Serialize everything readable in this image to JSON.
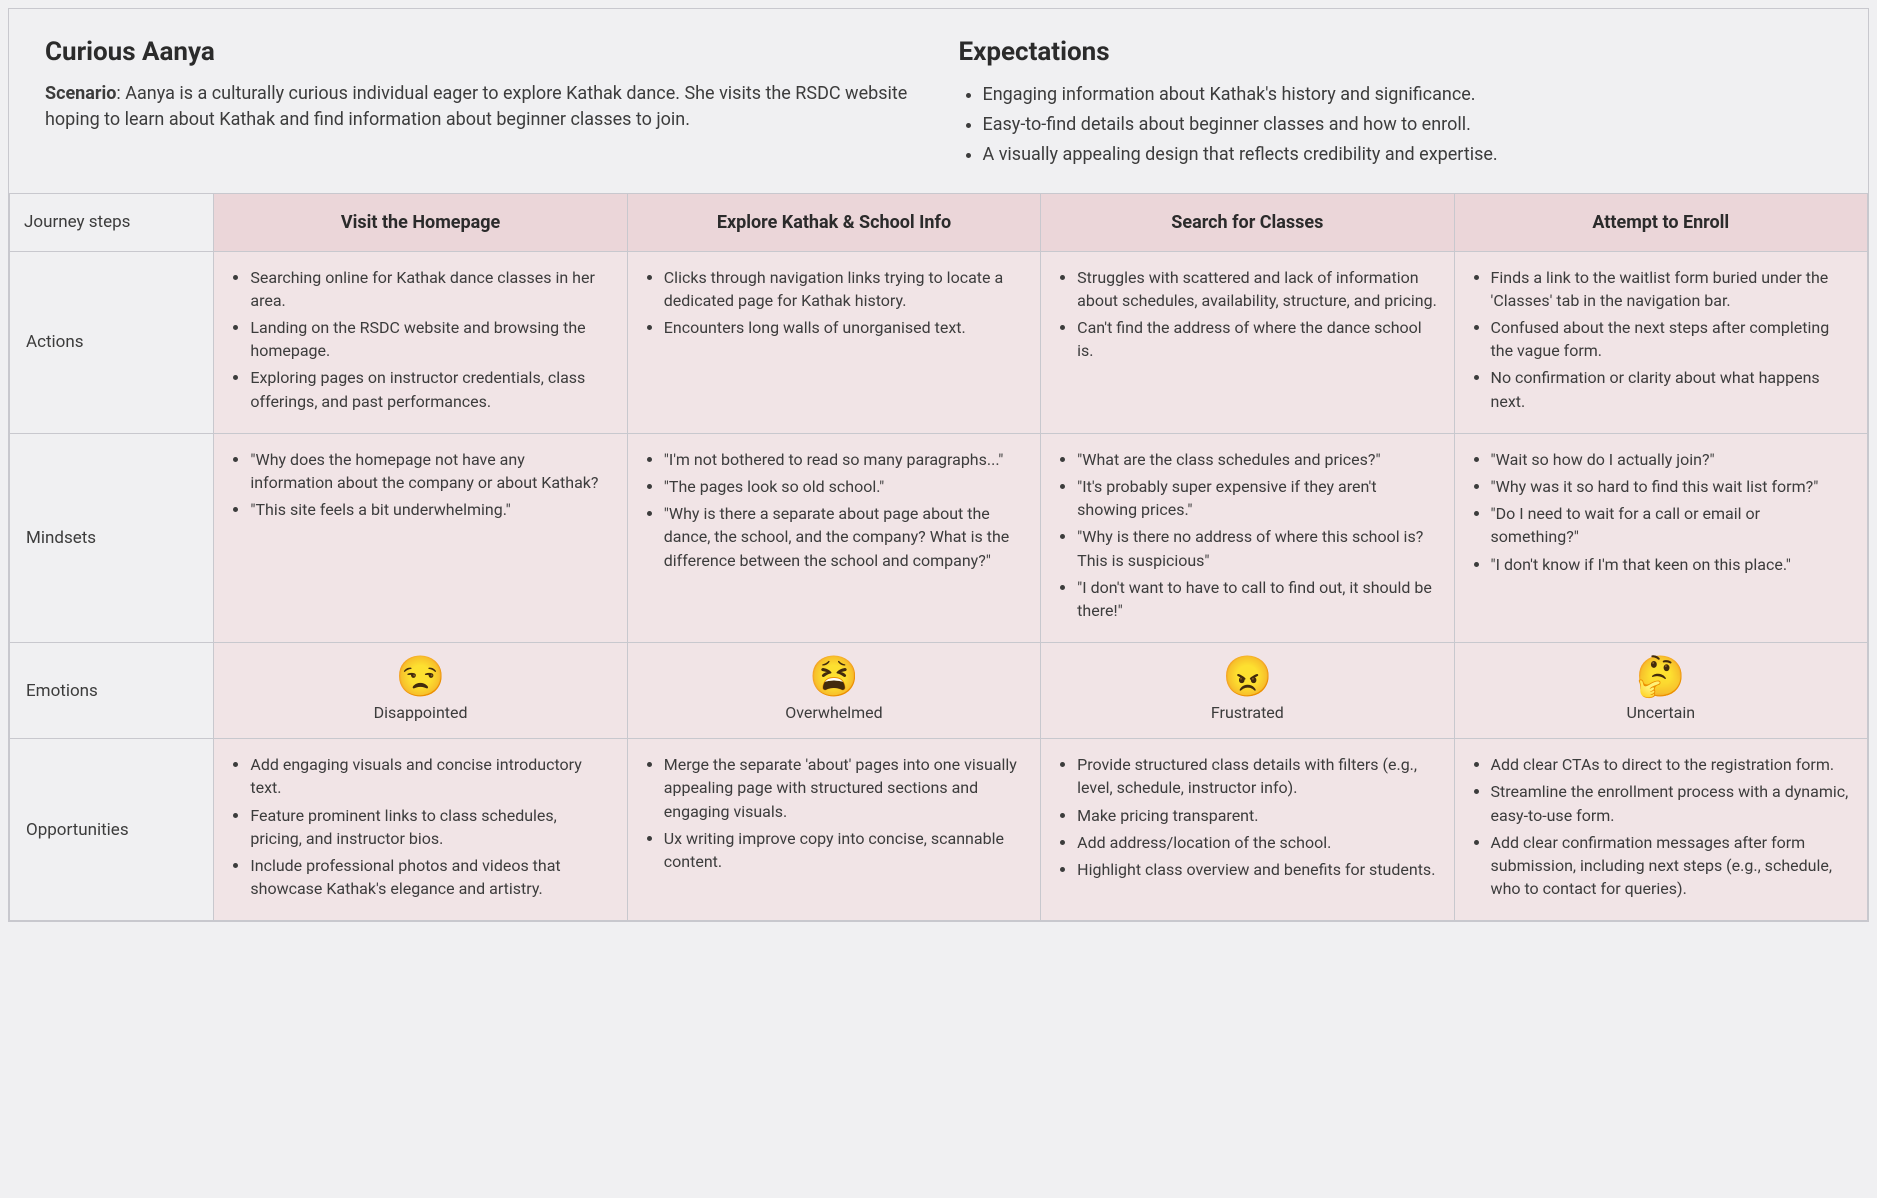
{
  "meta": {
    "structure": "journey-map-table",
    "columns_layout": [
      "label",
      "step",
      "step",
      "step",
      "step"
    ],
    "colors": {
      "page_bg": "#f0f0f2",
      "border": "#c8c8ce",
      "step_header_bg": "#ebd6d9",
      "cell_bg": "#f1e4e6",
      "label_bg": "#f0f0f2",
      "text": "#3c3c3c",
      "heading": "#2b2b2b"
    },
    "typography": {
      "font_family": "system-ui / Roboto-like",
      "h1_size_pt": 20,
      "step_header_size_pt": 14,
      "body_size_pt": 12
    }
  },
  "persona_title": "Curious Aanya",
  "scenario_label": "Scenario",
  "scenario_text": ": Aanya is a culturally curious individual eager to explore Kathak dance. She visits the RSDC website hoping to learn about Kathak and find information about beginner classes to join.",
  "expectations_title": "Expectations",
  "expectations": [
    "Engaging information about Kathak's history and significance.",
    "Easy-to-find details about beginner classes and how to enroll.",
    "A visually appealing design that reflects credibility and expertise."
  ],
  "corner_label": "Journey steps",
  "steps": [
    {
      "title": "Visit the Homepage"
    },
    {
      "title": "Explore Kathak & School Info"
    },
    {
      "title": "Search for Classes"
    },
    {
      "title": "Attempt to Enroll"
    }
  ],
  "rows": {
    "actions": {
      "label": "Actions",
      "cells": [
        [
          "Searching online for Kathak dance classes in her area.",
          "Landing on the RSDC website and browsing the homepage.",
          "Exploring pages on instructor credentials, class offerings, and past performances."
        ],
        [
          "Clicks through navigation links trying to locate a dedicated page for Kathak history.",
          "Encounters long walls of unorganised text."
        ],
        [
          "Struggles with scattered and lack of information about schedules, availability, structure, and pricing.",
          "Can't find the address of where the dance school is."
        ],
        [
          "Finds a link to the waitlist form buried under the 'Classes' tab in the navigation bar.",
          "Confused about the next steps after completing the vague form.",
          "No confirmation or clarity about what happens next."
        ]
      ]
    },
    "mindsets": {
      "label": "Mindsets",
      "cells": [
        [
          "\"Why does the homepage not have any information about the company or about Kathak?",
          "\"This site feels a bit underwhelming.\""
        ],
        [
          "\"I'm not bothered to read so many paragraphs...\"",
          "\"The pages look so old school.\"",
          "\"Why is there a separate about page about the dance, the school, and the company? What is the difference between the school and company?\""
        ],
        [
          "\"What are the class schedules and prices?\"",
          "\"It's probably super expensive if they aren't showing prices.\"",
          "\"Why is there no address of where this school is? This is suspicious\"",
          "\"I don't want to have to call to find out, it should be there!\""
        ],
        [
          "\"Wait so how do I actually join?\"",
          "\"Why was it so hard to find this wait list form?\"",
          "\"Do I need to wait for a call or email or something?\"",
          "\"I don't know if I'm that keen on this place.\""
        ]
      ]
    },
    "emotions": {
      "label": "Emotions",
      "cells": [
        {
          "emoji": "😒",
          "label": "Disappointed"
        },
        {
          "emoji": "😫",
          "label": "Overwhelmed"
        },
        {
          "emoji": "😠",
          "label": "Frustrated"
        },
        {
          "emoji": "🤔",
          "label": "Uncertain"
        }
      ]
    },
    "opportunities": {
      "label": "Opportunities",
      "cells": [
        [
          "Add engaging visuals and concise introductory text.",
          "Feature prominent links to class schedules, pricing, and instructor bios.",
          "Include professional photos and videos that showcase Kathak's elegance and artistry."
        ],
        [
          "Merge the separate 'about' pages into one visually appealing page with structured sections and engaging visuals.",
          "Ux writing improve copy into concise, scannable content."
        ],
        [
          "Provide structured class details with filters (e.g., level, schedule, instructor info).",
          "Make pricing transparent.",
          "Add address/location of the school.",
          "Highlight class overview and benefits for students."
        ],
        [
          "Add clear CTAs to direct to the registration form.",
          "Streamline the enrollment process with a dynamic, easy-to-use form.",
          "Add clear confirmation messages after form submission, including next steps (e.g., schedule, who to contact for queries)."
        ]
      ]
    }
  }
}
